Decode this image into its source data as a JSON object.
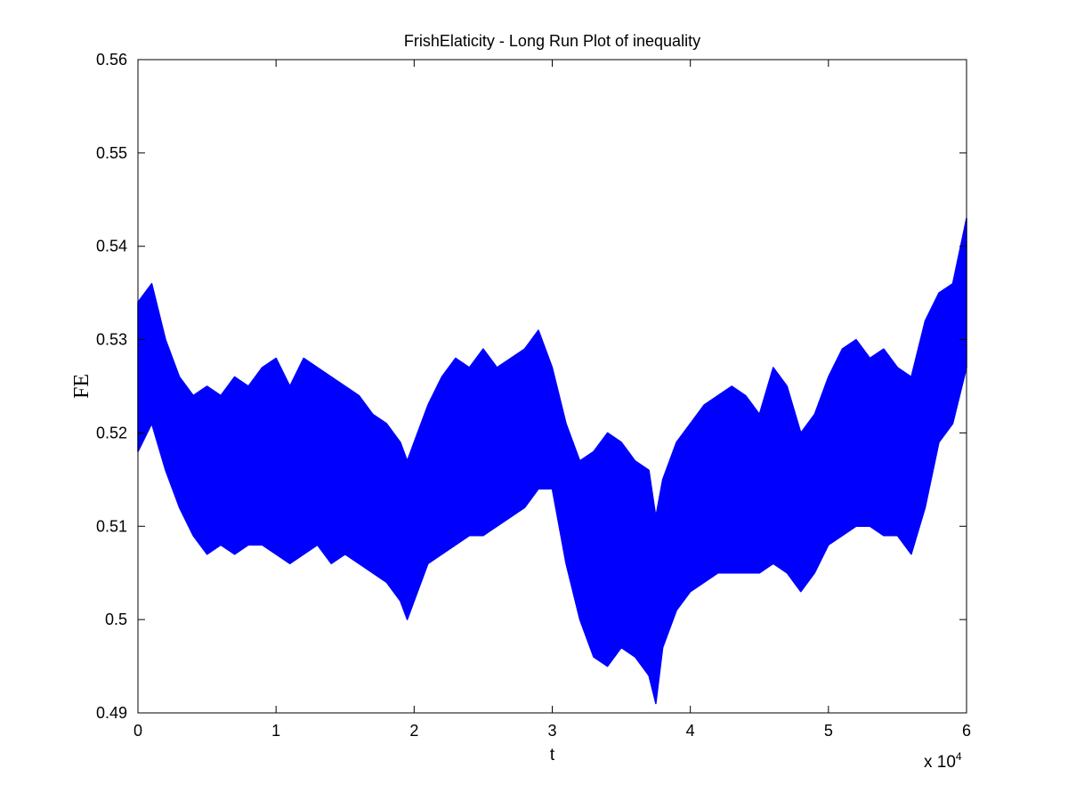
{
  "chart_data": {
    "type": "area",
    "title": "FrishElaticity - Long Run Plot of  inequality",
    "xlabel": "t",
    "ylabel": "FE",
    "x_multiplier_base": "x 10",
    "x_multiplier_exp": "4",
    "xlim": [
      0,
      6
    ],
    "ylim": [
      0.49,
      0.56
    ],
    "x_ticks": [
      0,
      1,
      2,
      3,
      4,
      5,
      6
    ],
    "x_tick_labels": [
      "0",
      "1",
      "2",
      "3",
      "4",
      "5",
      "6"
    ],
    "y_ticks": [
      0.49,
      0.5,
      0.51,
      0.52,
      0.53,
      0.54,
      0.55,
      0.56
    ],
    "y_tick_labels": [
      "0.49",
      "0.5",
      "0.51",
      "0.52",
      "0.53",
      "0.54",
      "0.55",
      "0.56"
    ],
    "grid": false,
    "series_color": "#0000ff",
    "series": [
      {
        "x": [
          0,
          0.1,
          0.2,
          0.3,
          0.4,
          0.5,
          0.6,
          0.7,
          0.8,
          0.9,
          1.0,
          1.1,
          1.2,
          1.3,
          1.4,
          1.5,
          1.6,
          1.7,
          1.8,
          1.9,
          1.95,
          2.0,
          2.1,
          2.2,
          2.3,
          2.4,
          2.5,
          2.6,
          2.7,
          2.8,
          2.9,
          3.0,
          3.1,
          3.2,
          3.3,
          3.4,
          3.5,
          3.6,
          3.7,
          3.75,
          3.8,
          3.9,
          4.0,
          4.1,
          4.2,
          4.3,
          4.4,
          4.5,
          4.6,
          4.7,
          4.8,
          4.9,
          5.0,
          5.1,
          5.2,
          5.3,
          5.4,
          5.5,
          5.6,
          5.7,
          5.8,
          5.9,
          6.0
        ],
        "upper": [
          0.534,
          0.536,
          0.53,
          0.526,
          0.524,
          0.525,
          0.524,
          0.526,
          0.525,
          0.527,
          0.528,
          0.525,
          0.528,
          0.527,
          0.526,
          0.525,
          0.524,
          0.522,
          0.521,
          0.519,
          0.517,
          0.519,
          0.523,
          0.526,
          0.528,
          0.527,
          0.529,
          0.527,
          0.528,
          0.529,
          0.531,
          0.527,
          0.521,
          0.517,
          0.518,
          0.52,
          0.519,
          0.517,
          0.516,
          0.511,
          0.515,
          0.519,
          0.521,
          0.523,
          0.524,
          0.525,
          0.524,
          0.522,
          0.527,
          0.525,
          0.52,
          0.522,
          0.526,
          0.529,
          0.53,
          0.528,
          0.529,
          0.527,
          0.526,
          0.532,
          0.535,
          0.536,
          0.543
        ],
        "lower": [
          0.518,
          0.521,
          0.516,
          0.512,
          0.509,
          0.507,
          0.508,
          0.507,
          0.508,
          0.508,
          0.507,
          0.506,
          0.507,
          0.508,
          0.506,
          0.507,
          0.506,
          0.505,
          0.504,
          0.502,
          0.5,
          0.502,
          0.506,
          0.507,
          0.508,
          0.509,
          0.509,
          0.51,
          0.511,
          0.512,
          0.514,
          0.514,
          0.506,
          0.5,
          0.496,
          0.495,
          0.497,
          0.496,
          0.494,
          0.491,
          0.497,
          0.501,
          0.503,
          0.504,
          0.505,
          0.505,
          0.505,
          0.505,
          0.506,
          0.505,
          0.503,
          0.505,
          0.508,
          0.509,
          0.51,
          0.51,
          0.509,
          0.509,
          0.507,
          0.512,
          0.519,
          0.521,
          0.527
        ]
      }
    ]
  }
}
